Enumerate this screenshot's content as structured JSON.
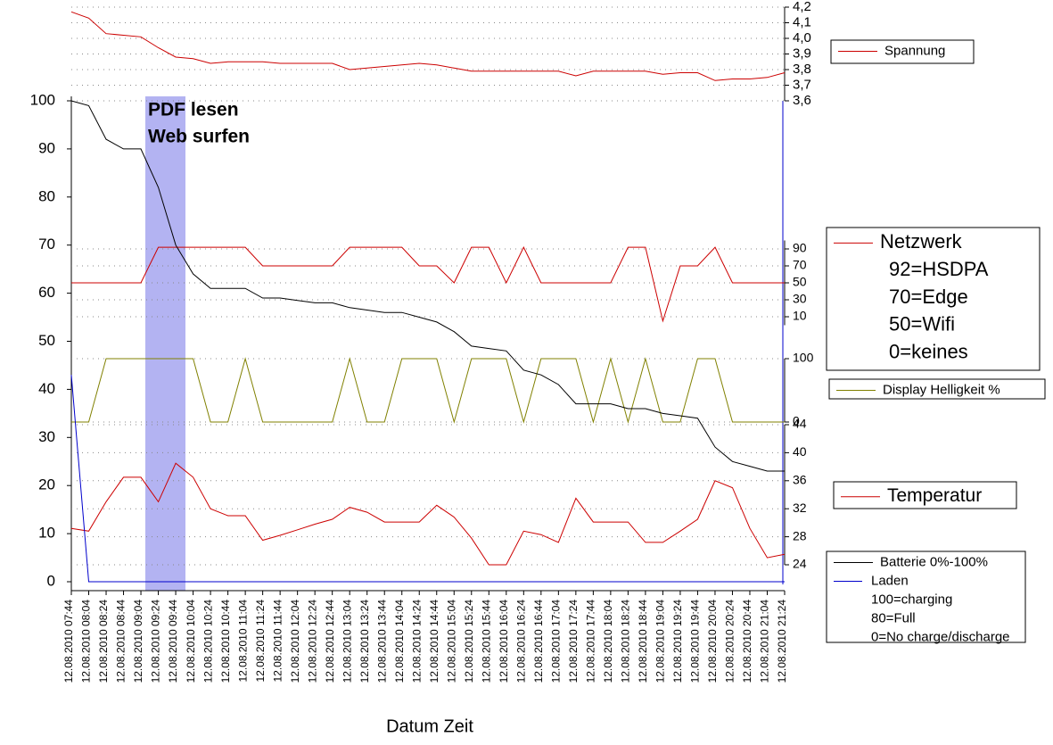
{
  "chart_data": {
    "type": "line",
    "xlabel": "Datum Zeit",
    "annotations": [
      "PDF lesen",
      "Web surfen"
    ],
    "grid": true,
    "ylim": [
      0,
      100
    ],
    "yticks": [
      0,
      10,
      20,
      30,
      40,
      50,
      60,
      70,
      80,
      90,
      100
    ],
    "categories": [
      "12.08.2010 07:44",
      "12.08.2010 08:04",
      "12.08.2010 08:24",
      "12.08.2010 08:44",
      "12.08.2010 09:04",
      "12.08.2010 09:24",
      "12.08.2010 09:44",
      "12.08.2010 10:04",
      "12.08.2010 10:24",
      "12.08.2010 10:44",
      "12.08.2010 11:04",
      "12.08.2010 11:24",
      "12.08.2010 11:44",
      "12.08.2010 12:04",
      "12.08.2010 12:24",
      "12.08.2010 12:44",
      "12.08.2010 13:04",
      "12.08.2010 13:24",
      "12.08.2010 13:44",
      "12.08.2010 14:04",
      "12.08.2010 14:24",
      "12.08.2010 14:44",
      "12.08.2010 15:04",
      "12.08.2010 15:24",
      "12.08.2010 15:44",
      "12.08.2010 16:04",
      "12.08.2010 16:24",
      "12.08.2010 16:44",
      "12.08.2010 17:04",
      "12.08.2010 17:24",
      "12.08.2010 17:44",
      "12.08.2010 18:04",
      "12.08.2010 18:24",
      "12.08.2010 18:44",
      "12.08.2010 19:04",
      "12.08.2010 19:24",
      "12.08.2010 19:44",
      "12.08.2010 20:04",
      "12.08.2010 20:24",
      "12.08.2010 20:44",
      "12.08.2010 21:04",
      "12.08.2010 21:24"
    ],
    "series": [
      {
        "name": "Spannung",
        "color": "#cc0000",
        "ylim": [
          3.6,
          4.2
        ],
        "yticks": [
          {
            "value": 3.6,
            "label": "3,6"
          },
          {
            "value": 3.7,
            "label": "3,7"
          },
          {
            "value": 3.8,
            "label": "3,8"
          },
          {
            "value": 3.9,
            "label": "3,9"
          },
          {
            "value": 4.0,
            "label": "4,0"
          },
          {
            "value": 4.1,
            "label": "4,1"
          },
          {
            "value": 4.2,
            "label": "4,2"
          }
        ],
        "values": [
          4.17,
          4.13,
          4.03,
          4.02,
          4.01,
          3.94,
          3.88,
          3.87,
          3.84,
          3.85,
          3.85,
          3.85,
          3.84,
          3.84,
          3.84,
          3.84,
          3.8,
          3.81,
          3.82,
          3.83,
          3.84,
          3.83,
          3.81,
          3.79,
          3.79,
          3.79,
          3.79,
          3.79,
          3.79,
          3.76,
          3.79,
          3.79,
          3.79,
          3.79,
          3.77,
          3.78,
          3.78,
          3.73,
          3.74,
          3.74,
          3.75,
          3.78
        ]
      },
      {
        "name": "Netzwerk",
        "color": "#cc0000",
        "legend_notes": [
          "92=HSDPA",
          "70=Edge",
          "50=Wifi",
          "0=keines"
        ],
        "ylim": [
          0,
          100
        ],
        "yticks": [
          10,
          30,
          50,
          70,
          90
        ],
        "values": [
          50,
          50,
          50,
          50,
          50,
          92,
          92,
          92,
          92,
          92,
          92,
          70,
          70,
          70,
          70,
          70,
          92,
          92,
          92,
          92,
          70,
          70,
          50,
          92,
          92,
          50,
          92,
          50,
          50,
          50,
          50,
          50,
          92,
          92,
          5,
          70,
          70,
          92,
          50,
          50,
          50,
          50
        ]
      },
      {
        "name": "Display Helligkeit %",
        "color": "#808000",
        "ylim": [
          0,
          100
        ],
        "yticks": [
          0,
          100
        ],
        "values": [
          0,
          0,
          100,
          100,
          100,
          100,
          100,
          100,
          0,
          0,
          100,
          0,
          0,
          0,
          0,
          0,
          100,
          0,
          0,
          100,
          100,
          100,
          0,
          100,
          100,
          100,
          0,
          100,
          100,
          100,
          0,
          100,
          0,
          100,
          0,
          0,
          100,
          100,
          0,
          0,
          0,
          0
        ]
      },
      {
        "name": "Temperatur",
        "color": "#cc0000",
        "ylim": [
          24,
          44
        ],
        "yticks": [
          24,
          28,
          32,
          36,
          40,
          44
        ],
        "values": [
          29.2,
          28.8,
          33,
          36.5,
          36.5,
          33,
          38.5,
          36.5,
          32,
          31,
          31,
          27.5,
          28.2,
          29,
          29.8,
          30.5,
          32.2,
          31.5,
          30.1,
          30.1,
          30.1,
          32.5,
          30.8,
          27.8,
          24,
          24,
          28.8,
          28.3,
          27.2,
          33.5,
          30.1,
          30.1,
          30.1,
          27.2,
          27.2,
          28.8,
          30.5,
          36,
          35,
          29.2,
          25,
          25.5
        ]
      },
      {
        "name": "Batterie 0%-100%",
        "color": "#000000",
        "values": [
          100,
          99,
          92,
          90,
          90,
          82,
          70,
          64,
          61,
          61,
          61,
          59,
          59,
          58.5,
          58,
          58,
          57,
          56.5,
          56,
          56,
          55,
          54,
          52,
          49,
          48.5,
          48,
          44,
          43,
          41,
          37,
          37,
          37,
          36,
          36,
          35,
          34.5,
          34,
          28,
          25,
          24,
          23,
          23
        ]
      },
      {
        "name": "Laden",
        "color": "#0000cc",
        "legend_notes": [
          "100=charging",
          "80=Full",
          "0=No charge/discharge"
        ],
        "values": [
          43,
          0,
          0,
          0,
          0,
          0,
          0,
          0,
          0,
          0,
          0,
          0,
          0,
          0,
          0,
          0,
          0,
          0,
          0,
          0,
          0,
          0,
          0,
          0,
          0,
          0,
          0,
          0,
          0,
          0,
          0,
          0,
          0,
          0,
          0,
          0,
          0,
          0,
          0,
          0,
          0,
          0
        ]
      }
    ]
  }
}
